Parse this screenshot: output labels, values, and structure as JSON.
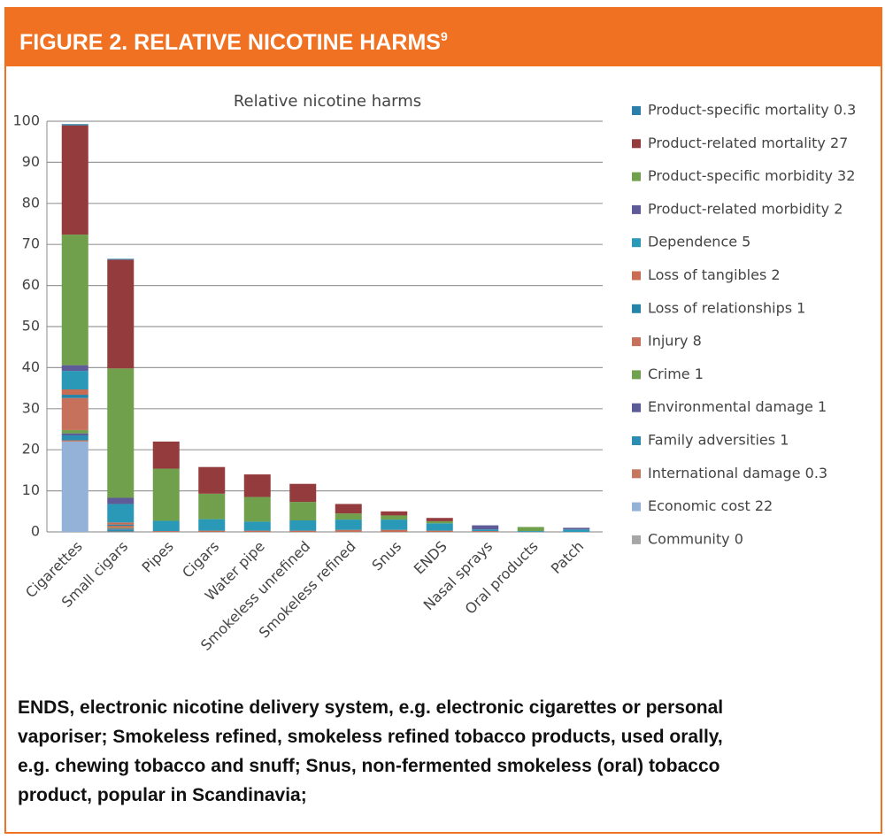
{
  "header": {
    "title": "FIGURE 2. RELATIVE NICOTINE HARMS",
    "footnote": "9"
  },
  "chart_data": {
    "type": "stacked_bar",
    "title": "Relative nicotine harms",
    "categories": [
      "Cigarettes",
      "Small cigars",
      "Pipes",
      "Cigars",
      "Water pipe",
      "Smokeless unrefined",
      "Smokeless refined",
      "Snus",
      "ENDS",
      "Nasal sprays",
      "Oral products",
      "Patch"
    ],
    "ylim": [
      0,
      100
    ],
    "yticks": [
      0,
      10,
      20,
      30,
      40,
      50,
      60,
      70,
      80,
      90,
      100
    ],
    "grid": true,
    "legend": "right",
    "series": [
      {
        "name": "Product-specific mortality 0.3",
        "color": "#2b7fa8",
        "values": [
          0.3,
          0.2,
          0,
          0,
          0,
          0,
          0,
          0,
          0,
          0,
          0,
          0
        ]
      },
      {
        "name": "Product-related mortality 27",
        "color": "#943c3d",
        "values": [
          26.6,
          26.5,
          6.6,
          6.5,
          5.5,
          4.4,
          2.3,
          1,
          0.8,
          0,
          0,
          0
        ]
      },
      {
        "name": "Product-specific morbidity 32",
        "color": "#71a04c",
        "values": [
          31.8,
          31.5,
          12.7,
          6.2,
          6,
          4.5,
          1.5,
          1,
          0.5,
          0,
          1,
          0
        ]
      },
      {
        "name": "Product-related morbidity 2",
        "color": "#5e5b98",
        "values": [
          1.4,
          1.5,
          0,
          0,
          0,
          0,
          0,
          0,
          0,
          1,
          0,
          0.4
        ]
      },
      {
        "name": "Dependence 5",
        "color": "#2a98b7",
        "values": [
          4.5,
          4.5,
          2.5,
          2.8,
          2.2,
          2.5,
          2.5,
          2.5,
          1.8,
          0.4,
          0.2,
          0.6
        ]
      },
      {
        "name": "Loss of tangibles 2",
        "color": "#c86c53",
        "values": [
          1.3,
          0.5,
          0.2,
          0.3,
          0.3,
          0.3,
          0,
          0.5,
          0.3,
          0.2,
          0,
          0
        ]
      },
      {
        "name": "Loss of relationships 1",
        "color": "#2784a9",
        "values": [
          0.8,
          0.3,
          0,
          0,
          0,
          0,
          0,
          0,
          0,
          0,
          0,
          0
        ]
      },
      {
        "name": "Injury 8",
        "color": "#c5715b",
        "values": [
          7.8,
          0.5,
          0,
          0,
          0,
          0,
          0.5,
          0,
          0,
          0,
          0,
          0
        ]
      },
      {
        "name": "Crime 1",
        "color": "#6fa14e",
        "values": [
          0.8,
          0.2,
          0,
          0,
          0,
          0,
          0,
          0,
          0,
          0,
          0,
          0
        ]
      },
      {
        "name": "Environmental damage 1",
        "color": "#5b5c97",
        "values": [
          0.5,
          0.2,
          0,
          0,
          0,
          0,
          0,
          0,
          0,
          0,
          0,
          0
        ]
      },
      {
        "name": "Family adversities 1",
        "color": "#2a8db1",
        "values": [
          1.2,
          0.5,
          0,
          0,
          0,
          0,
          0,
          0,
          0,
          0,
          0,
          0
        ]
      },
      {
        "name": "International damage 0.3",
        "color": "#c47860",
        "values": [
          0.3,
          0.1,
          0,
          0,
          0,
          0,
          0,
          0,
          0,
          0,
          0,
          0
        ]
      },
      {
        "name": "Economic cost 22",
        "color": "#94b1d7",
        "values": [
          22,
          0,
          0,
          0,
          0,
          0,
          0,
          0,
          0,
          0,
          0,
          0
        ]
      },
      {
        "name": "Community 0",
        "color": "#a6a6a6",
        "values": [
          0,
          0,
          0,
          0,
          0,
          0,
          0,
          0,
          0,
          0,
          0,
          0
        ]
      }
    ]
  },
  "caption": "ENDS, electronic nicotine delivery system, e.g. electronic cigarettes or personal vaporiser; Smokeless refined, smokeless refined tobacco products, used orally, e.g. chewing tobacco and snuff; Snus, non-fermented smokeless (oral) tobacco product, popular in Scandinavia;"
}
